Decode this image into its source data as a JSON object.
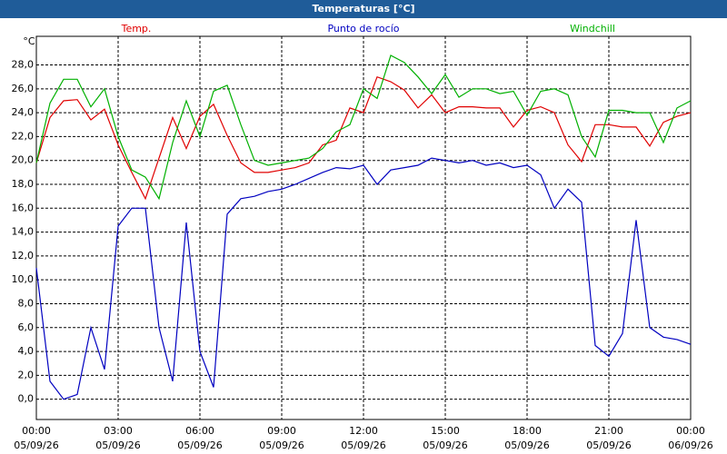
{
  "chart_data": {
    "type": "line",
    "title": "Temperaturas [°C]",
    "y_unit": "°C",
    "x": [
      0,
      0.5,
      1,
      1.5,
      2,
      2.5,
      3,
      3.5,
      4,
      4.5,
      5,
      5.5,
      6,
      6.5,
      7,
      7.5,
      8,
      8.5,
      9,
      9.5,
      10,
      10.5,
      11,
      11.5,
      12,
      12.5,
      13,
      13.5,
      14,
      14.5,
      15,
      15.5,
      16,
      16.5,
      17,
      17.5,
      18,
      18.5,
      19,
      19.5,
      20,
      20.5,
      21,
      21.5,
      22,
      22.5,
      23,
      23.5,
      24
    ],
    "series": [
      {
        "name": "Temp.",
        "color": "#e00000",
        "values": [
          19.8,
          23.6,
          25.0,
          25.1,
          23.4,
          24.3,
          21.3,
          19.0,
          16.8,
          20.2,
          23.6,
          21.0,
          23.7,
          24.7,
          22.1,
          19.8,
          19.0,
          19.0,
          19.2,
          19.4,
          19.8,
          21.3,
          21.7,
          24.4,
          24.0,
          27.0,
          26.6,
          25.9,
          24.4,
          25.5,
          24.0,
          24.5,
          24.5,
          24.4,
          24.4,
          22.8,
          24.2,
          24.5,
          24.0,
          21.3,
          19.9,
          23.0,
          23.0,
          22.8,
          22.8,
          21.2,
          23.2,
          23.7,
          24.0
        ]
      },
      {
        "name": "Punto de rocío",
        "color": "#0000c0",
        "values": [
          11.0,
          1.5,
          0.0,
          0.4,
          6.0,
          2.5,
          14.5,
          16.0,
          16.0,
          6.0,
          1.5,
          14.8,
          4.0,
          1.0,
          15.5,
          16.8,
          17.0,
          17.4,
          17.6,
          18.0,
          18.5,
          19.0,
          19.4,
          19.3,
          19.6,
          18.0,
          19.2,
          19.4,
          19.6,
          20.2,
          20.0,
          19.8,
          20.0,
          19.6,
          19.8,
          19.4,
          19.6,
          18.8,
          16.0,
          17.6,
          16.5,
          4.5,
          3.6,
          5.5,
          15.0,
          6.0,
          5.2,
          5.0,
          4.6
        ]
      },
      {
        "name": "Windchill",
        "color": "#00b000",
        "values": [
          19.8,
          24.8,
          26.8,
          26.8,
          24.5,
          26.0,
          22.0,
          19.2,
          18.6,
          16.8,
          21.5,
          25.0,
          22.0,
          25.8,
          26.3,
          23.0,
          20.0,
          19.6,
          19.8,
          20.0,
          20.2,
          21.0,
          22.4,
          23.0,
          26.0,
          25.2,
          28.8,
          28.2,
          27.0,
          25.6,
          27.2,
          25.3,
          26.0,
          26.0,
          25.6,
          25.8,
          23.8,
          25.8,
          26.0,
          25.5,
          22.0,
          20.3,
          24.2,
          24.2,
          24.0,
          24.0,
          21.5,
          24.4,
          25.0
        ]
      }
    ],
    "xlim": [
      0,
      24
    ],
    "xticks": [
      {
        "value": 0,
        "label": "00:00",
        "date": "05/09/26"
      },
      {
        "value": 3,
        "label": "03:00",
        "date": "05/09/26"
      },
      {
        "value": 6,
        "label": "06:00",
        "date": "05/09/26"
      },
      {
        "value": 9,
        "label": "09:00",
        "date": "05/09/26"
      },
      {
        "value": 12,
        "label": "12:00",
        "date": "05/09/26"
      },
      {
        "value": 15,
        "label": "15:00",
        "date": "05/09/26"
      },
      {
        "value": 18,
        "label": "18:00",
        "date": "05/09/26"
      },
      {
        "value": 21,
        "label": "21:00",
        "date": "05/09/26"
      },
      {
        "value": 24,
        "label": "00:00",
        "date": "06/09/26"
      }
    ],
    "ylim": [
      -1.7,
      30.4
    ],
    "yticks": [
      {
        "value": 0,
        "label": "0,0"
      },
      {
        "value": 2,
        "label": "2,0"
      },
      {
        "value": 4,
        "label": "4,0"
      },
      {
        "value": 6,
        "label": "6,0"
      },
      {
        "value": 8,
        "label": "8,0"
      },
      {
        "value": 10,
        "label": "10,0"
      },
      {
        "value": 12,
        "label": "12,0"
      },
      {
        "value": 14,
        "label": "14,0"
      },
      {
        "value": 16,
        "label": "16,0"
      },
      {
        "value": 18,
        "label": "18,0"
      },
      {
        "value": 20,
        "label": "20,0"
      },
      {
        "value": 22,
        "label": "22,0"
      },
      {
        "value": 24,
        "label": "24,0"
      },
      {
        "value": 26,
        "label": "26,0"
      },
      {
        "value": 28,
        "label": "28,0"
      }
    ],
    "grid": true
  }
}
